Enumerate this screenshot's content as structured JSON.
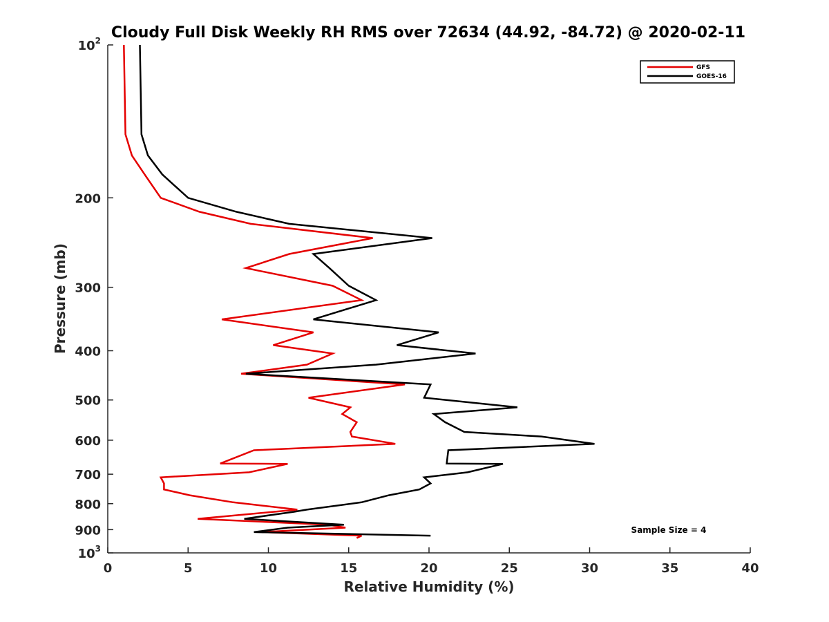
{
  "chart_data": {
    "type": "line",
    "title": "Cloudy Full Disk Weekly RH RMS over 72634 (44.92, -84.72) @ 2020-02-11",
    "xlabel": "Relative Humidity (%)",
    "ylabel": "Pressure (mb)",
    "xlim": [
      0,
      40
    ],
    "ylim": [
      100,
      1000
    ],
    "y_scale": "log",
    "y_reversed": true,
    "x_ticks": [
      0,
      5,
      10,
      15,
      20,
      25,
      30,
      35,
      40
    ],
    "x_tick_labels": [
      "0",
      "5",
      "10",
      "15",
      "20",
      "25",
      "30",
      "35",
      "40"
    ],
    "y_ticks": [
      100,
      200,
      300,
      400,
      500,
      600,
      700,
      800,
      900,
      1000
    ],
    "y_tick_labels": [
      {
        "base": "10",
        "exp": "2"
      },
      {
        "base": "200",
        "exp": ""
      },
      {
        "base": "300",
        "exp": ""
      },
      {
        "base": "400",
        "exp": ""
      },
      {
        "base": "500",
        "exp": ""
      },
      {
        "base": "600",
        "exp": ""
      },
      {
        "base": "700",
        "exp": ""
      },
      {
        "base": "800",
        "exp": ""
      },
      {
        "base": "900",
        "exp": ""
      },
      {
        "base": "10",
        "exp": "3"
      }
    ],
    "grid": false,
    "legend_position": "top-right",
    "annotation": "Sample Size = 4",
    "series": [
      {
        "name": "GFS",
        "color": "#e50000",
        "points": [
          [
            1.0,
            100
          ],
          [
            1.1,
            150
          ],
          [
            1.5,
            165
          ],
          [
            2.3,
            180
          ],
          [
            3.3,
            200
          ],
          [
            5.7,
            213
          ],
          [
            8.9,
            225
          ],
          [
            16.5,
            240
          ],
          [
            11.3,
            258
          ],
          [
            8.6,
            275
          ],
          [
            14.0,
            298
          ],
          [
            15.8,
            318
          ],
          [
            7.1,
            347
          ],
          [
            12.8,
            368
          ],
          [
            10.3,
            390
          ],
          [
            14.0,
            405
          ],
          [
            12.4,
            426
          ],
          [
            8.3,
            444
          ],
          [
            18.5,
            466
          ],
          [
            12.5,
            495
          ],
          [
            15.1,
            517
          ],
          [
            14.6,
            533
          ],
          [
            15.5,
            553
          ],
          [
            15.1,
            578
          ],
          [
            15.2,
            590
          ],
          [
            17.9,
            610
          ],
          [
            9.1,
            628
          ],
          [
            7.0,
            667
          ],
          [
            11.2,
            668
          ],
          [
            8.8,
            694
          ],
          [
            3.3,
            710
          ],
          [
            3.5,
            730
          ],
          [
            3.5,
            750
          ],
          [
            5.1,
            770
          ],
          [
            7.8,
            795
          ],
          [
            11.8,
            822
          ],
          [
            5.6,
            857
          ],
          [
            13.7,
            880
          ],
          [
            14.8,
            892
          ],
          [
            9.6,
            910
          ],
          [
            15.8,
            925
          ],
          [
            15.5,
            935
          ]
        ]
      },
      {
        "name": "GOES-16",
        "color": "#000000",
        "points": [
          [
            2.0,
            100
          ],
          [
            2.1,
            150
          ],
          [
            2.5,
            165
          ],
          [
            3.4,
            180
          ],
          [
            5.0,
            200
          ],
          [
            8.0,
            213
          ],
          [
            11.3,
            225
          ],
          [
            20.2,
            240
          ],
          [
            12.8,
            258
          ],
          [
            13.8,
            275
          ],
          [
            15.0,
            298
          ],
          [
            16.7,
            318
          ],
          [
            12.8,
            347
          ],
          [
            20.6,
            368
          ],
          [
            18.0,
            390
          ],
          [
            22.9,
            405
          ],
          [
            16.7,
            426
          ],
          [
            8.6,
            444
          ],
          [
            20.1,
            466
          ],
          [
            19.7,
            495
          ],
          [
            25.5,
            517
          ],
          [
            20.3,
            533
          ],
          [
            21.0,
            553
          ],
          [
            22.2,
            578
          ],
          [
            27.0,
            590
          ],
          [
            30.3,
            610
          ],
          [
            21.2,
            628
          ],
          [
            21.1,
            667
          ],
          [
            24.6,
            668
          ],
          [
            22.4,
            694
          ],
          [
            19.7,
            710
          ],
          [
            20.1,
            730
          ],
          [
            19.4,
            750
          ],
          [
            17.5,
            770
          ],
          [
            15.8,
            795
          ],
          [
            12.4,
            822
          ],
          [
            11.6,
            830
          ],
          [
            8.5,
            857
          ],
          [
            14.7,
            880
          ],
          [
            11.2,
            892
          ],
          [
            9.1,
            910
          ],
          [
            20.1,
            925
          ]
        ]
      }
    ]
  }
}
